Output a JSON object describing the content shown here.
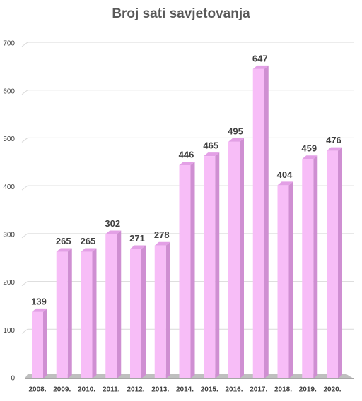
{
  "chart_data": {
    "type": "bar",
    "title": "Broj sati savjetovanja",
    "categories": [
      "2008.",
      "2009.",
      "2010.",
      "2011.",
      "2012.",
      "2013.",
      "2014.",
      "2015.",
      "2016.",
      "2017.",
      "2018.",
      "2019.",
      "2020."
    ],
    "values": [
      139,
      265,
      265,
      302,
      271,
      278,
      446,
      465,
      495,
      647,
      404,
      459,
      476
    ],
    "color": "#f7bdf7",
    "ylim": [
      0,
      700
    ],
    "yticks": [
      0,
      100,
      200,
      300,
      400,
      500,
      600,
      700
    ],
    "grid": true
  }
}
